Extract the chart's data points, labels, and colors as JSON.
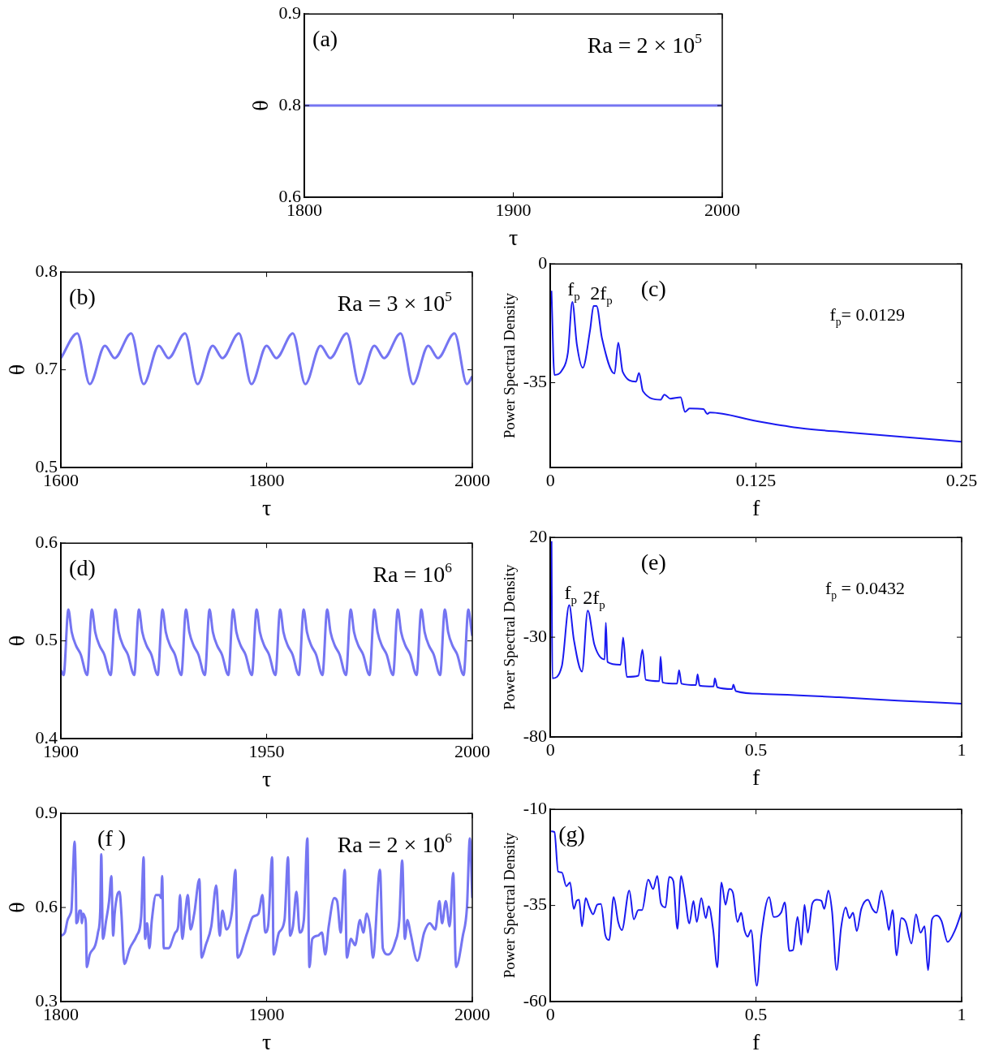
{
  "chart_data": [
    {
      "type": "line",
      "xlabel": "τ",
      "ylabel": "θ",
      "annotations": [
        "(a)",
        "Ra = 2 × 10$^{5}$"
      ],
      "color": "#7575f2",
      "xlim": [
        1800,
        2000
      ],
      "xticks": [
        1800,
        1900,
        2000
      ],
      "ylim": [
        0.6,
        0.9
      ],
      "yticks": [
        0.6,
        {
          "value": 0.75,
          "label": "0.8"
        },
        0.9
      ],
      "x": [
        1800,
        2000
      ],
      "values": [
        0.75,
        0.75
      ]
    },
    {
      "type": "line",
      "xlabel": "τ",
      "ylabel": "θ",
      "annotations": [
        "(b)",
        "Ra = 3 × 10$^{5}$"
      ],
      "color": "#7575f2",
      "xlim": [
        1600,
        2000
      ],
      "xticks": [
        1600,
        1800,
        2000
      ],
      "ylim": [
        0.5,
        0.8
      ],
      "yticks": [
        0.5,
        {
          "value": 0.65,
          "label": "0.7"
        },
        0.8
      ],
      "x": [
        1600,
        1615.9,
        1628.0,
        1642.8,
        1652.2,
        1668.3,
        1680.4,
        1695.2,
        1704.6,
        1720.7,
        1732.8,
        1747.6,
        1757.0,
        1773.1,
        1785.2,
        1800.0,
        1809.4,
        1825.5,
        1837.6,
        1852.4,
        1861.8,
        1877.9,
        1890.0,
        1904.8,
        1914.2,
        1930.3,
        1942.4,
        1957.2,
        1966.6,
        1982.7,
        1994.8,
        2000
      ],
      "values": [
        0.668,
        0.706,
        0.628,
        0.687,
        0.668,
        0.706,
        0.628,
        0.687,
        0.668,
        0.706,
        0.628,
        0.687,
        0.668,
        0.706,
        0.628,
        0.687,
        0.668,
        0.706,
        0.628,
        0.687,
        0.668,
        0.706,
        0.628,
        0.687,
        0.668,
        0.706,
        0.628,
        0.687,
        0.668,
        0.706,
        0.628,
        0.64
      ]
    },
    {
      "type": "line",
      "xlabel": "f",
      "ylabel": "Power Spectral Density",
      "annotations": [
        "(c)",
        "f$_{p}$= 0.0129",
        {
          "text": "f$_{p}$",
          "x": 0.0134,
          "y": -11.2
        },
        {
          "text": "2f$_{p}$",
          "x": 0.0272,
          "y": -12.4
        }
      ],
      "color": "#1a1af0",
      "xlim": [
        0,
        0.25
      ],
      "xticks": [
        0,
        0.125,
        0.25
      ],
      "ylim": [
        -60,
        0
      ],
      "yticks": [
        -35,
        0
      ],
      "x": [
        0.0007,
        0.0025,
        0.007,
        0.0107,
        0.0134,
        0.0161,
        0.0197,
        0.0242,
        0.0263,
        0.0281,
        0.0314,
        0.039,
        0.0413,
        0.044,
        0.0521,
        0.0539,
        0.0563,
        0.0671,
        0.0693,
        0.0729,
        0.0792,
        0.0819,
        0.0846,
        0.0931,
        0.0954,
        0.0969,
        0.1252,
        0.1522,
        0.1793,
        0.2154,
        0.25
      ],
      "values": [
        -7.9,
        -32.7,
        -31.4,
        -26.1,
        -11.2,
        -23.6,
        -30.6,
        -19.4,
        -12.4,
        -12.4,
        -21.9,
        -32.3,
        -23.2,
        -31.8,
        -34.7,
        -32.1,
        -37.5,
        -40.0,
        -38.5,
        -39.7,
        -39.3,
        -43.6,
        -42.6,
        -42.8,
        -44.2,
        -43.8,
        -46.3,
        -48.4,
        -49.6,
        -51.0,
        -52.4
      ]
    },
    {
      "type": "line",
      "xlabel": "τ",
      "ylabel": "θ",
      "annotations": [
        "(d)",
        "Ra = 10$^{6}$"
      ],
      "color": "#7575f2",
      "xlim": [
        1900,
        2000
      ],
      "xticks": [
        1900,
        1950,
        2000
      ],
      "ylim": [
        0.4,
        0.6
      ],
      "yticks": [
        0.4,
        0.5,
        0.6
      ],
      "x": [
        1900,
        1900.66,
        1901.8,
        1902.61,
        1903.68,
        1904.82,
        1906.37,
        1907.52,
        1908.33,
        1909.4,
        1910.54,
        1912.09,
        1913.24,
        1914.05,
        1915.12,
        1916.26,
        1917.81,
        1918.96,
        1919.77,
        1920.84,
        1921.98,
        1923.53,
        1924.68,
        1925.49,
        1926.56,
        1927.7,
        1929.25,
        1930.4,
        1931.21,
        1932.28,
        1933.42,
        1934.97,
        1936.12,
        1936.93,
        1938.0,
        1939.14,
        1940.69,
        1941.84,
        1942.65,
        1943.72,
        1944.86,
        1946.41,
        1947.56,
        1948.37,
        1949.44,
        1950.58,
        1952.13,
        1953.28,
        1954.09,
        1955.16,
        1956.3,
        1957.85,
        1959.0,
        1959.81,
        1960.88,
        1962.02,
        1963.57,
        1964.72,
        1965.53,
        1966.6,
        1967.74,
        1969.29,
        1970.44,
        1971.25,
        1972.32,
        1973.46,
        1975.01,
        1976.16,
        1976.97,
        1978.04,
        1979.18,
        1980.73,
        1981.88,
        1982.69,
        1983.76,
        1984.9,
        1986.45,
        1987.6,
        1988.41,
        1989.48,
        1990.62,
        1992.17,
        1993.32,
        1994.13,
        1995.2,
        1996.34,
        1997.89,
        1999.04,
        1999.85,
        2000
      ],
      "values": [
        0.47,
        0.465,
        0.532,
        0.509,
        0.495,
        0.486,
        0.465,
        0.532,
        0.509,
        0.495,
        0.486,
        0.465,
        0.532,
        0.509,
        0.495,
        0.486,
        0.465,
        0.532,
        0.509,
        0.495,
        0.486,
        0.465,
        0.532,
        0.509,
        0.495,
        0.486,
        0.465,
        0.532,
        0.509,
        0.495,
        0.486,
        0.465,
        0.532,
        0.509,
        0.495,
        0.486,
        0.465,
        0.532,
        0.509,
        0.495,
        0.486,
        0.465,
        0.532,
        0.509,
        0.495,
        0.486,
        0.465,
        0.532,
        0.509,
        0.495,
        0.486,
        0.465,
        0.532,
        0.509,
        0.495,
        0.486,
        0.465,
        0.532,
        0.509,
        0.495,
        0.486,
        0.465,
        0.532,
        0.509,
        0.495,
        0.486,
        0.465,
        0.532,
        0.509,
        0.495,
        0.486,
        0.465,
        0.532,
        0.509,
        0.495,
        0.486,
        0.465,
        0.532,
        0.509,
        0.495,
        0.486,
        0.465,
        0.532,
        0.509,
        0.495,
        0.486,
        0.465,
        0.532,
        0.509,
        0.505
      ]
    },
    {
      "type": "line",
      "xlabel": "f",
      "ylabel": "Power Spectral Density",
      "annotations": [
        "(e)",
        "f$_{p}$ = 0.0432",
        {
          "text": "f$_{p}$",
          "x": 0.046,
          "y": -13.9
        },
        {
          "text": "2f$_{p}$",
          "x": 0.091,
          "y": -16.6
        }
      ],
      "color": "#1a1af0",
      "xlim": [
        0,
        1
      ],
      "xticks": [
        0,
        0.5,
        1
      ],
      "ylim": [
        -80,
        20
      ],
      "yticks": [
        -80,
        -30,
        20
      ],
      "x": [
        0.003,
        0.005,
        0.028,
        0.046,
        0.057,
        0.077,
        0.091,
        0.107,
        0.132,
        0.135,
        0.139,
        0.171,
        0.177,
        0.186,
        0.214,
        0.224,
        0.232,
        0.265,
        0.268,
        0.273,
        0.308,
        0.313,
        0.319,
        0.354,
        0.358,
        0.363,
        0.397,
        0.4,
        0.406,
        0.442,
        0.445,
        0.451,
        0.515,
        0.702,
        0.845,
        1
      ],
      "values": [
        18.1,
        -50.6,
        -44.5,
        -13.9,
        -30.9,
        -47.2,
        -16.6,
        -33.6,
        -41.1,
        -22.7,
        -42.4,
        -43.8,
        -30.2,
        -49.9,
        -49.3,
        -36.3,
        -51.3,
        -52.0,
        -39.7,
        -52.7,
        -53.3,
        -46.5,
        -53.3,
        -54.0,
        -48.6,
        -54.3,
        -54.7,
        -50.6,
        -55.1,
        -56.0,
        -53.8,
        -57.0,
        -58.4,
        -60.1,
        -61.8,
        -63.3
      ]
    },
    {
      "type": "line",
      "xlabel": "τ",
      "ylabel": "θ",
      "annotations": [
        "(f )",
        "Ra = 2 × 10$^{6}$"
      ],
      "color": "#7575f2",
      "xlim": [
        1800,
        2000
      ],
      "xticks": [
        1800,
        1900,
        2000
      ],
      "ylim": [
        0.3,
        0.9
      ],
      "yticks": [
        0.3,
        0.6,
        0.9
      ],
      "x": [
        1800,
        1801.9,
        1803.2,
        1804.6,
        1805.2,
        1805.9,
        1806.6,
        1807.3,
        1807.5,
        1808.3,
        1808.9,
        1809.7,
        1810.2,
        1810.8,
        1811.6,
        1812.1,
        1812.6,
        1814.0,
        1816.7,
        1818.0,
        1819.1,
        1819.6,
        1820.4,
        1822.0,
        1823.4,
        1824.5,
        1825.4,
        1826.1,
        1827.4,
        1828.5,
        1829.4,
        1830.8,
        1833.5,
        1836.8,
        1839.0,
        1840.2,
        1840.9,
        1841.9,
        1843.0,
        1844.2,
        1846.2,
        1847.9,
        1848.7,
        1849.2,
        1850.0,
        1852.3,
        1855.6,
        1857.0,
        1857.9,
        1859.0,
        1860.4,
        1861.7,
        1863.0,
        1864.8,
        1867.3,
        1868.4,
        1870.4,
        1873.1,
        1875.5,
        1877.2,
        1878.5,
        1880.5,
        1883.2,
        1884.8,
        1885.9,
        1890.6,
        1893.3,
        1896.0,
        1898.0,
        1899.3,
        1900.7,
        1902.7,
        1903.4,
        1906.0,
        1908.7,
        1910.4,
        1911.4,
        1912.8,
        1914.5,
        1916.1,
        1918.1,
        1919.8,
        1920.8,
        1922.2,
        1924.9,
        1926.9,
        1928.5,
        1930.2,
        1932.9,
        1934.3,
        1936.0,
        1938.0,
        1939.0,
        1941.0,
        1943.0,
        1945.4,
        1947.0,
        1948.7,
        1950.4,
        1951.7,
        1955.1,
        1956.5,
        1959.1,
        1962.5,
        1964.5,
        1965.9,
        1967.2,
        1968.5,
        1969.9,
        1973.3,
        1976.6,
        1979.3,
        1982.0,
        1984.0,
        1985.3,
        1987.1,
        1989.0,
        1990.7,
        1992.1,
        1995.4,
        1997.4,
        1998.8,
        2000
      ],
      "values": [
        0.51,
        0.52,
        0.56,
        0.58,
        0.6,
        0.72,
        0.81,
        0.66,
        0.55,
        0.56,
        0.59,
        0.59,
        0.55,
        0.58,
        0.57,
        0.55,
        0.41,
        0.45,
        0.48,
        0.52,
        0.59,
        0.77,
        0.5,
        0.56,
        0.62,
        0.7,
        0.51,
        0.58,
        0.64,
        0.65,
        0.58,
        0.42,
        0.47,
        0.51,
        0.57,
        0.76,
        0.5,
        0.55,
        0.47,
        0.56,
        0.64,
        0.64,
        0.63,
        0.7,
        0.47,
        0.47,
        0.52,
        0.54,
        0.64,
        0.5,
        0.58,
        0.64,
        0.53,
        0.58,
        0.69,
        0.44,
        0.48,
        0.54,
        0.67,
        0.51,
        0.59,
        0.53,
        0.59,
        0.72,
        0.44,
        0.52,
        0.57,
        0.58,
        0.64,
        0.52,
        0.54,
        0.76,
        0.45,
        0.52,
        0.56,
        0.76,
        0.51,
        0.54,
        0.65,
        0.52,
        0.56,
        0.82,
        0.41,
        0.5,
        0.51,
        0.52,
        0.45,
        0.54,
        0.63,
        0.62,
        0.52,
        0.72,
        0.44,
        0.5,
        0.48,
        0.56,
        0.52,
        0.58,
        0.53,
        0.44,
        0.72,
        0.47,
        0.45,
        0.49,
        0.56,
        0.75,
        0.5,
        0.56,
        0.52,
        0.43,
        0.52,
        0.55,
        0.53,
        0.62,
        0.55,
        0.62,
        0.54,
        0.71,
        0.41,
        0.51,
        0.6,
        0.82,
        0.63
      ]
    },
    {
      "type": "line",
      "xlabel": "f",
      "ylabel": "Power Spectral Density",
      "annotations": [
        "(g)"
      ],
      "color": "#1a1af0",
      "xlim": [
        0,
        1
      ],
      "xticks": [
        0,
        0.5,
        1
      ],
      "ylim": [
        -60,
        -10
      ],
      "yticks": [
        -60,
        -35,
        -10
      ],
      "x": [
        0.002,
        0.01,
        0.019,
        0.028,
        0.039,
        0.048,
        0.057,
        0.064,
        0.07,
        0.077,
        0.086,
        0.095,
        0.104,
        0.114,
        0.123,
        0.134,
        0.143,
        0.154,
        0.165,
        0.174,
        0.192,
        0.203,
        0.214,
        0.223,
        0.238,
        0.25,
        0.26,
        0.269,
        0.28,
        0.289,
        0.299,
        0.309,
        0.318,
        0.327,
        0.338,
        0.348,
        0.356,
        0.367,
        0.378,
        0.385,
        0.396,
        0.406,
        0.416,
        0.426,
        0.435,
        0.444,
        0.455,
        0.464,
        0.472,
        0.48,
        0.488,
        0.502,
        0.513,
        0.532,
        0.543,
        0.561,
        0.57,
        0.581,
        0.59,
        0.601,
        0.61,
        0.618,
        0.626,
        0.637,
        0.648,
        0.659,
        0.666,
        0.676,
        0.685,
        0.696,
        0.707,
        0.718,
        0.727,
        0.736,
        0.745,
        0.756,
        0.772,
        0.783,
        0.793,
        0.805,
        0.815,
        0.823,
        0.832,
        0.842,
        0.853,
        0.864,
        0.878,
        0.889,
        0.9,
        0.91,
        0.918,
        0.928,
        0.94,
        0.951,
        0.966,
        0.984,
        1.0
      ],
      "values": [
        -15.7,
        -15.9,
        -26.2,
        -26.4,
        -30.0,
        -29.0,
        -35.9,
        -33.8,
        -33.5,
        -40.4,
        -33.1,
        -35.5,
        -37.3,
        -34.8,
        -34.6,
        -42.8,
        -44.0,
        -32.8,
        -39.3,
        -41.4,
        -31.1,
        -38.6,
        -36.2,
        -36.2,
        -28.3,
        -30.7,
        -27.3,
        -34.5,
        -35.5,
        -27.6,
        -28.6,
        -41.1,
        -27.3,
        -32.4,
        -39.7,
        -33.8,
        -39.3,
        -33.1,
        -38.3,
        -35.2,
        -41.4,
        -51.1,
        -29.0,
        -34.8,
        -30.7,
        -31.7,
        -39.3,
        -36.9,
        -41.4,
        -43.1,
        -41.4,
        -55.9,
        -42.8,
        -32.8,
        -38.0,
        -36.9,
        -34.2,
        -46.8,
        -46.6,
        -38.0,
        -45.2,
        -34.8,
        -42.1,
        -34.5,
        -33.5,
        -33.8,
        -35.9,
        -31.1,
        -36.6,
        -51.8,
        -40.7,
        -35.5,
        -38.3,
        -36.9,
        -41.7,
        -35.9,
        -33.5,
        -35.9,
        -36.9,
        -31.1,
        -35.9,
        -41.4,
        -36.2,
        -48.0,
        -38.3,
        -39.3,
        -44.9,
        -37.3,
        -42.1,
        -40.4,
        -51.8,
        -38.6,
        -37.6,
        -39.0,
        -44.5,
        -41.4,
        -36.6
      ]
    }
  ]
}
